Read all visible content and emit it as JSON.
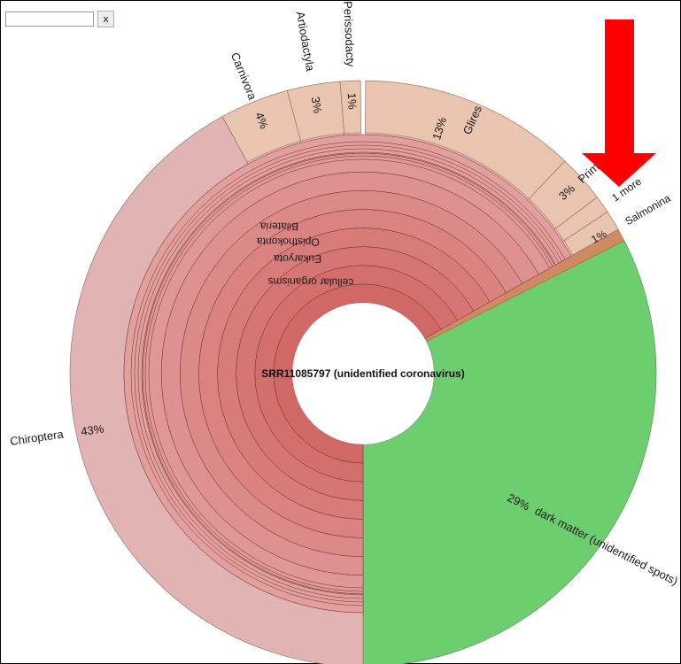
{
  "toolbar": {
    "search_placeholder": "",
    "clear_label": "x"
  },
  "center_label": "SRR11085797 (unidentified coronavirus)",
  "annotation": {
    "arrow_color": "#ff0000",
    "points_to": "Primates"
  },
  "chart_data": {
    "type": "sunburst",
    "root": "SRR11085797 (unidentified coronavirus)",
    "lineage": [
      "cellular organisms",
      "Eukaryota",
      "Opisthokonta",
      "Bilateria"
    ],
    "outer_ring": [
      {
        "name": "dark matter (unidentified spots)",
        "label": "29%",
        "percent": 29,
        "color": "#6dce70"
      },
      {
        "name": "Chiroptera",
        "label": "43%",
        "percent": 43,
        "color": "#e2b3b3"
      },
      {
        "name": "Carnivora",
        "label": "4%",
        "percent": 4,
        "color": "#e9c5b0"
      },
      {
        "name": "Artiodactyla",
        "label": "3%",
        "percent": 3,
        "color": "#e9c5b0"
      },
      {
        "name": "Perissodactyla",
        "display": "Perissodacty",
        "label": "1%",
        "percent": 1,
        "color": "#e9c5b0"
      },
      {
        "name": "Glires",
        "label": "13%",
        "percent": 13,
        "color": "#e9c5b0"
      },
      {
        "name": "Primates",
        "label": "3%",
        "percent": 3,
        "color": "#e9c5b0"
      },
      {
        "name": "1 more",
        "label": "",
        "percent": 1,
        "color": "#e9c5b0"
      },
      {
        "name": "Salmonina",
        "label": "1%",
        "percent": 1,
        "color": "#e9c5b0"
      }
    ],
    "colors": {
      "chiroptera": "#e2b3b3",
      "mammal_orders": "#e9c5b0",
      "dark_matter": "#6dce70",
      "inner_red": "#d16d6b",
      "other_thin": "#cf8a62"
    }
  }
}
